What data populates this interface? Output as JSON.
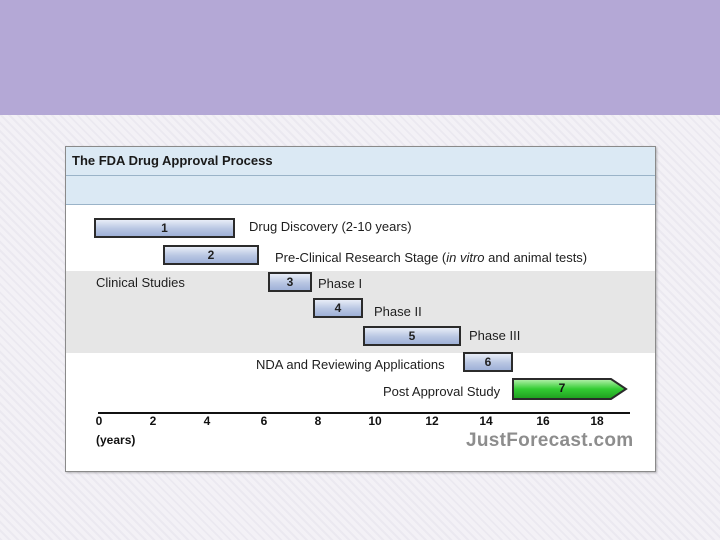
{
  "figure": {
    "title": "The FDA Drug Approval Process",
    "section_label": "Clinical Studies",
    "brand": "JustForecast.com",
    "axis_unit": "(years)",
    "ticks": [
      "0",
      "2",
      "4",
      "6",
      "8",
      "10",
      "12",
      "14",
      "16",
      "18"
    ],
    "tick_values": [
      0,
      2,
      4,
      6,
      8,
      10,
      12,
      14,
      16,
      18
    ],
    "stages": [
      {
        "num": "1",
        "label": "Drug Discovery (2-10 years)",
        "start": 0,
        "end": 5
      },
      {
        "num": "2",
        "label_pre": "Pre-Clinical Research Stage  (",
        "label_italic": "in vitro",
        "label_post": " and animal tests)",
        "start": 2.5,
        "end": 6
      },
      {
        "num": "3",
        "label": "Phase I",
        "start": 6,
        "end": 7.5
      },
      {
        "num": "4",
        "label": "Phase II",
        "start": 7.5,
        "end": 9.5
      },
      {
        "num": "5",
        "label": "Phase III",
        "start": 9.5,
        "end": 13
      },
      {
        "num": "6",
        "label": "NDA and Reviewing Applications",
        "start": 13,
        "end": 14.5
      },
      {
        "num": "7",
        "label": "Post Approval Study",
        "start": 14.5,
        "end": 18.5
      }
    ],
    "colors": {
      "bar": "#b8c6e2",
      "bar_border": "#2b2b2b",
      "post_approval": "#33cc33",
      "header": "#dbe9f4",
      "band": "#e6e6e6"
    }
  }
}
